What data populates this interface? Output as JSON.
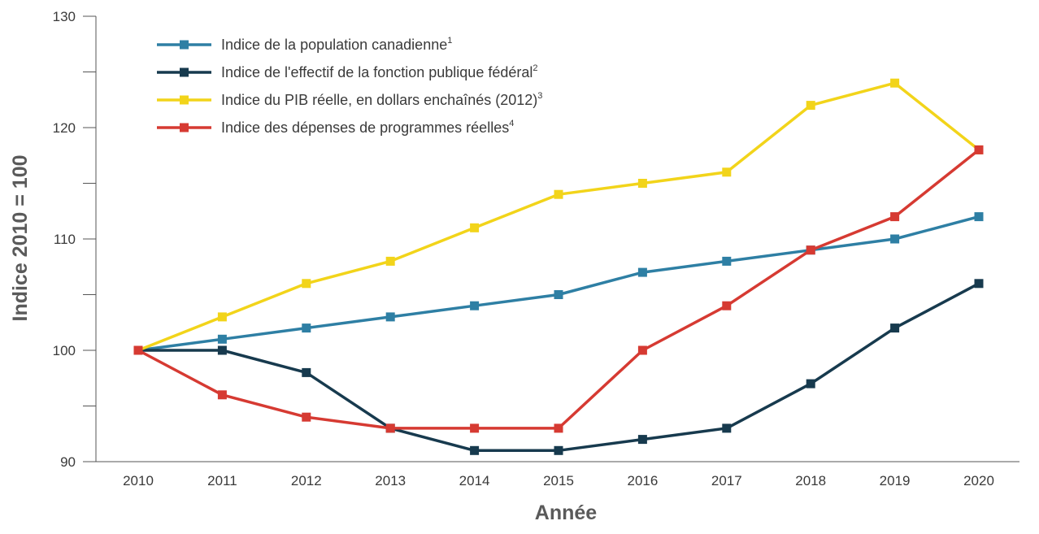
{
  "chart_data": {
    "type": "line",
    "xlabel": "Année",
    "ylabel": "Indice 2010 = 100",
    "ylim": [
      90,
      130
    ],
    "yticks": [
      90,
      100,
      110,
      120,
      130
    ],
    "x": [
      "2010",
      "2011",
      "2012",
      "2013",
      "2014",
      "2015",
      "2016",
      "2017",
      "2018",
      "2019",
      "2020"
    ],
    "legend_position": "top-left",
    "grid": false,
    "series": [
      {
        "name": "Indice de la population canadienne",
        "note": "1",
        "color": "#2e7fa4",
        "values": [
          100,
          101,
          102,
          103,
          104,
          105,
          107,
          108,
          109,
          110,
          112
        ]
      },
      {
        "name": "Indice de l'effectif de la fonction publique fédéral",
        "note": "2",
        "color": "#173a4e",
        "values": [
          100,
          100,
          98,
          93,
          91,
          91,
          92,
          93,
          97,
          102,
          106
        ]
      },
      {
        "name": "Indice du PIB réelle, en dollars enchaînés (2012)",
        "note": "3",
        "color": "#f2d41a",
        "values": [
          100,
          103,
          106,
          108,
          111,
          114,
          115,
          116,
          122,
          124,
          118
        ]
      },
      {
        "name": "Indice des dépenses de programmes réelles",
        "note": "4",
        "color": "#d63a32",
        "values": [
          100,
          96,
          94,
          93,
          93,
          93,
          100,
          104,
          109,
          112,
          118
        ]
      }
    ]
  }
}
